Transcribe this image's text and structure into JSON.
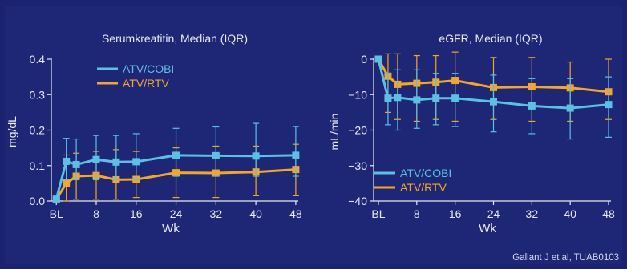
{
  "footer": "Gallant J et al, TUAB0103",
  "colors": {
    "atv_cobi": "#5bc0e4",
    "atv_rtv": "#f5a623",
    "axis": "#e8e9f2",
    "bg": "#1e2775"
  },
  "chart_data": [
    {
      "type": "line",
      "title": "Serumkreatitin, Median (IQR)",
      "xlabel": "Wk",
      "ylabel": "mg/dL",
      "xticks": [
        {
          "x": 0,
          "label": "BL"
        },
        {
          "x": 8,
          "label": "8"
        },
        {
          "x": 16,
          "label": "16"
        },
        {
          "x": 24,
          "label": "24"
        },
        {
          "x": 32,
          "label": "32"
        },
        {
          "x": 40,
          "label": "40"
        },
        {
          "x": 48,
          "label": "48"
        }
      ],
      "yticks": [
        "0.0",
        "0.1",
        "0.2",
        "0.3",
        "0.4"
      ],
      "ytick_values": [
        0,
        0.1,
        0.2,
        0.3,
        0.4
      ],
      "xlim": [
        -1,
        48.5
      ],
      "ylim": [
        0,
        0.4
      ],
      "legend_position": "top-left",
      "grid": false,
      "series": [
        {
          "name": "ATV/COBI",
          "color": "#5bc0e4",
          "x": [
            0,
            2,
            4,
            8,
            12,
            16,
            24,
            32,
            40,
            48
          ],
          "y": [
            0.005,
            0.112,
            0.103,
            0.117,
            0.11,
            0.111,
            0.129,
            0.128,
            0.127,
            0.129
          ],
          "lo": [
            0.0,
            0.06,
            0.06,
            0.06,
            0.06,
            0.06,
            0.07,
            0.07,
            0.07,
            0.07
          ],
          "hi": [
            0.01,
            0.177,
            0.175,
            0.185,
            0.185,
            0.19,
            0.205,
            0.209,
            0.219,
            0.21
          ]
        },
        {
          "name": "ATV/RTV",
          "color": "#f5a623",
          "x": [
            0,
            2,
            4,
            8,
            12,
            16,
            24,
            32,
            40,
            48
          ],
          "y": [
            0.005,
            0.05,
            0.07,
            0.072,
            0.06,
            0.061,
            0.08,
            0.079,
            0.082,
            0.089
          ],
          "lo": [
            0.0,
            0.0,
            0.005,
            0.005,
            0.005,
            0.01,
            0.01,
            0.01,
            0.015,
            0.015
          ],
          "hi": [
            0.01,
            0.13,
            0.135,
            0.14,
            0.145,
            0.14,
            0.15,
            0.155,
            0.155,
            0.16
          ]
        }
      ]
    },
    {
      "type": "line",
      "title": "eGFR, Median (IQR)",
      "xlabel": "Wk",
      "ylabel": "mL/min",
      "xticks": [
        {
          "x": 0,
          "label": "BL"
        },
        {
          "x": 8,
          "label": "8"
        },
        {
          "x": 16,
          "label": "16"
        },
        {
          "x": 24,
          "label": "24"
        },
        {
          "x": 32,
          "label": "32"
        },
        {
          "x": 40,
          "label": "40"
        },
        {
          "x": 48,
          "label": "48"
        }
      ],
      "yticks": [
        "0",
        "−10",
        "−20",
        "−30",
        "−40"
      ],
      "ytick_values": [
        0,
        -10,
        -20,
        -30,
        -40
      ],
      "xlim": [
        -1,
        48.5
      ],
      "ylim": [
        -40,
        0
      ],
      "legend_position": "bottom-left",
      "grid": false,
      "series": [
        {
          "name": "ATV/COBI",
          "color": "#5bc0e4",
          "x": [
            0,
            2,
            4,
            8,
            12,
            16,
            24,
            32,
            40,
            48
          ],
          "y": [
            0,
            -11.0,
            -10.8,
            -11.5,
            -11.0,
            -11.0,
            -12.0,
            -13.2,
            -13.8,
            -12.8
          ],
          "lo": [
            0,
            -18.5,
            -20.0,
            -19.5,
            -18.5,
            -19.0,
            -20.5,
            -21.0,
            -22.5,
            -22.0
          ],
          "hi": [
            0,
            -4.0,
            -3.0,
            -3.0,
            -4.0,
            -4.0,
            -4.5,
            -5.5,
            -5.5,
            -5.0
          ]
        },
        {
          "name": "ATV/RTV",
          "color": "#f5a623",
          "x": [
            0,
            2,
            4,
            8,
            12,
            16,
            24,
            32,
            40,
            48
          ],
          "y": [
            0,
            -4.8,
            -7.1,
            -6.8,
            -6.5,
            -6.0,
            -8.0,
            -7.8,
            -8.1,
            -9.2
          ],
          "lo": [
            0,
            -15.0,
            -17.0,
            -17.5,
            -17.0,
            -17.5,
            -17.0,
            -17.5,
            -17.5,
            -17.0
          ],
          "hi": [
            0,
            1.5,
            1.5,
            1.0,
            1.0,
            2.0,
            0.5,
            0.5,
            -0.8,
            0.0
          ]
        }
      ]
    }
  ]
}
